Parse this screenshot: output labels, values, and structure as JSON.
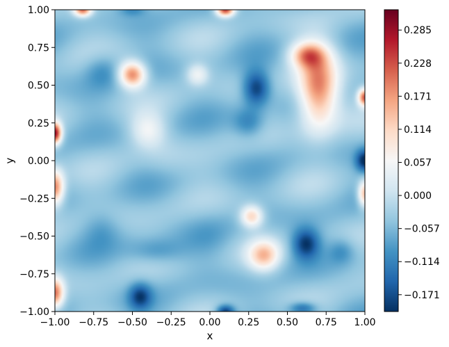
{
  "chart_data": {
    "type": "heatmap",
    "title": "",
    "xlabel": "x",
    "ylabel": "y",
    "xlim": [
      -1.0,
      1.0
    ],
    "ylim": [
      -1.0,
      1.0
    ],
    "x_ticks": [
      "−1.00",
      "−0.75",
      "−0.50",
      "−0.25",
      "0.00",
      "0.25",
      "0.50",
      "0.75",
      "1.00"
    ],
    "y_ticks": [
      "1.00",
      "0.75",
      "0.50",
      "0.25",
      "0.00",
      "−0.25",
      "−0.50",
      "−0.75",
      "−1.00"
    ],
    "colorbar": {
      "colormap": "RdBu_r",
      "vmin": -0.2,
      "vmax": 0.32,
      "tick_values": [
        0.285,
        0.228,
        0.171,
        0.114,
        0.057,
        0.0,
        -0.057,
        -0.114,
        -0.171
      ],
      "tick_labels": [
        "0.285",
        "0.228",
        "0.171",
        "0.114",
        "0.057",
        "0.000",
        "−0.057",
        "−0.114",
        "−0.171"
      ]
    },
    "grid": false,
    "background_value": -0.045,
    "features": [
      {
        "x": -0.5,
        "y": 0.57,
        "value": 0.2,
        "sx": 0.06,
        "sy": 0.06
      },
      {
        "x": 0.7,
        "y": 0.47,
        "value": 0.2,
        "sx": 0.09,
        "sy": 0.18
      },
      {
        "x": 0.63,
        "y": 0.7,
        "value": 0.14,
        "sx": 0.08,
        "sy": 0.06
      },
      {
        "x": 0.27,
        "y": -0.37,
        "value": 0.12,
        "sx": 0.05,
        "sy": 0.05
      },
      {
        "x": 0.35,
        "y": -0.63,
        "value": 0.12,
        "sx": 0.07,
        "sy": 0.07
      },
      {
        "x": -0.08,
        "y": 0.57,
        "value": 0.05,
        "sx": 0.05,
        "sy": 0.05
      },
      {
        "x": -0.4,
        "y": 0.2,
        "value": 0.05,
        "sx": 0.08,
        "sy": 0.08
      },
      {
        "x": -1.0,
        "y": 0.18,
        "value": 0.28,
        "sx": 0.03,
        "sy": 0.05
      },
      {
        "x": -1.0,
        "y": -0.18,
        "value": 0.2,
        "sx": 0.04,
        "sy": 0.08
      },
      {
        "x": -1.0,
        "y": -0.88,
        "value": 0.2,
        "sx": 0.04,
        "sy": 0.07
      },
      {
        "x": -0.82,
        "y": 1.0,
        "value": 0.2,
        "sx": 0.04,
        "sy": 0.03
      },
      {
        "x": 0.1,
        "y": 1.0,
        "value": 0.25,
        "sx": 0.04,
        "sy": 0.03
      },
      {
        "x": 1.0,
        "y": 0.42,
        "value": 0.22,
        "sx": 0.03,
        "sy": 0.04
      },
      {
        "x": 1.0,
        "y": -0.22,
        "value": 0.16,
        "sx": 0.03,
        "sy": 0.06
      },
      {
        "x": 0.3,
        "y": 0.48,
        "value": -0.2,
        "sx": 0.06,
        "sy": 0.08
      },
      {
        "x": 0.25,
        "y": 0.25,
        "value": -0.12,
        "sx": 0.07,
        "sy": 0.07
      },
      {
        "x": 0.62,
        "y": -0.55,
        "value": -0.19,
        "sx": 0.06,
        "sy": 0.07
      },
      {
        "x": -0.45,
        "y": -0.9,
        "value": -0.17,
        "sx": 0.05,
        "sy": 0.06
      },
      {
        "x": 0.1,
        "y": -1.0,
        "value": -0.2,
        "sx": 0.04,
        "sy": 0.03
      },
      {
        "x": 1.0,
        "y": 0.0,
        "value": -0.2,
        "sx": 0.04,
        "sy": 0.05
      },
      {
        "x": 0.6,
        "y": -0.98,
        "value": -0.15,
        "sx": 0.06,
        "sy": 0.03
      },
      {
        "x": -0.7,
        "y": 0.6,
        "value": -0.1,
        "sx": 0.08,
        "sy": 0.08
      },
      {
        "x": -0.35,
        "y": -0.6,
        "value": -0.1,
        "sx": 0.12,
        "sy": 0.06
      },
      {
        "x": -0.7,
        "y": -0.45,
        "value": -0.08,
        "sx": 0.08,
        "sy": 0.08
      },
      {
        "x": 0.0,
        "y": -0.5,
        "value": -0.06,
        "sx": 0.1,
        "sy": 0.1
      },
      {
        "x": -0.3,
        "y": 0.0,
        "value": -0.03,
        "sx": 0.1,
        "sy": 0.1
      },
      {
        "x": 0.85,
        "y": -0.6,
        "value": -0.1,
        "sx": 0.06,
        "sy": 0.06
      },
      {
        "x": -0.5,
        "y": 1.0,
        "value": -0.1,
        "sx": 0.06,
        "sy": 0.03
      }
    ]
  }
}
